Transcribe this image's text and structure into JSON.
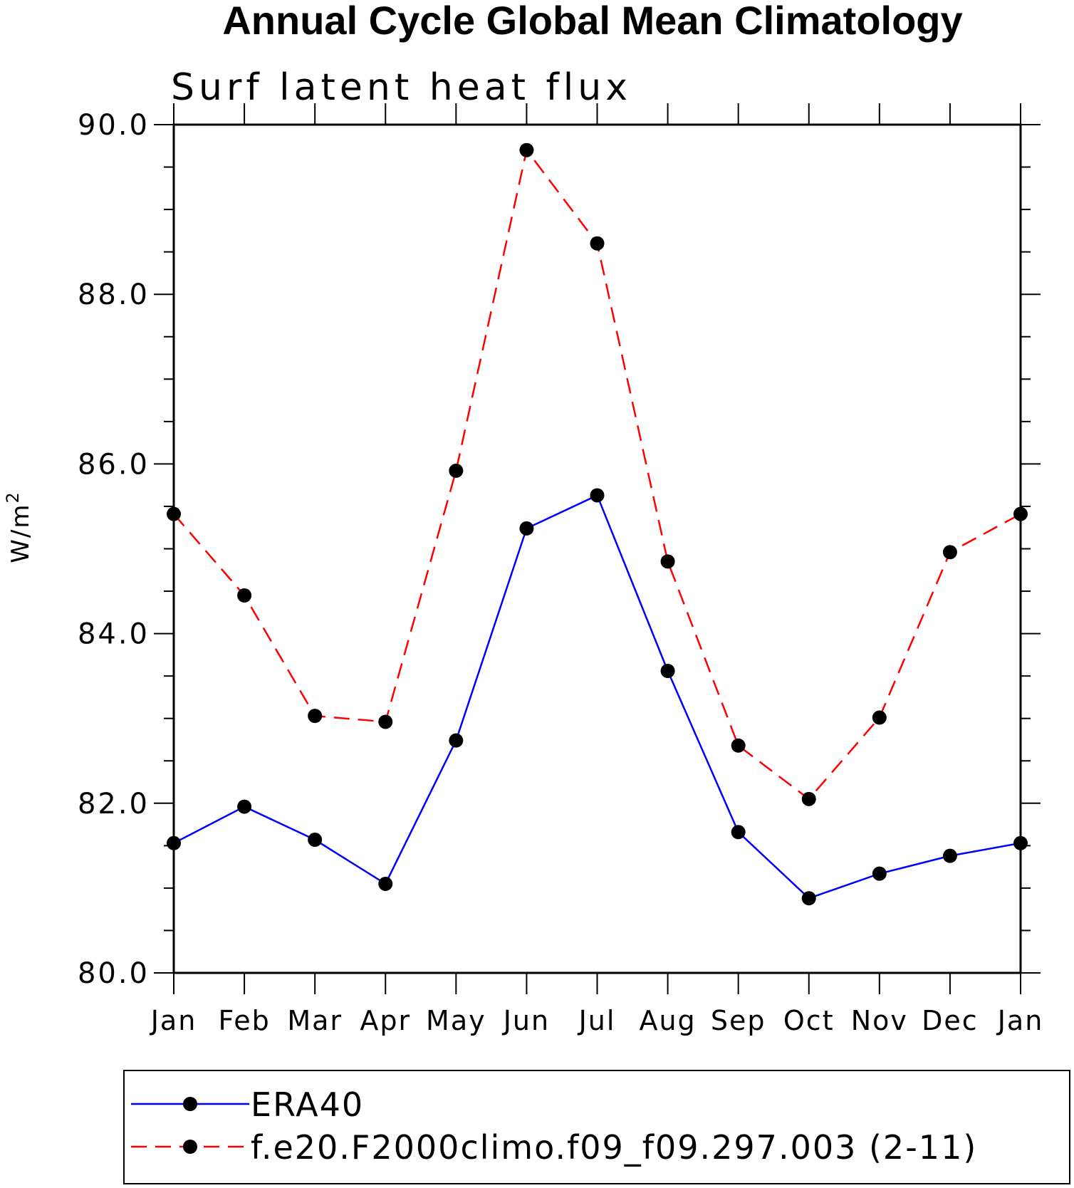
{
  "chart_data": {
    "type": "line",
    "title": "Annual Cycle Global Mean Climatology",
    "subtitle": "Surf latent heat flux",
    "ylabel": "W/m",
    "ylabel_superscript": "2",
    "xlabel": "",
    "ylim": [
      80.0,
      90.0
    ],
    "yticks": [
      "80.0",
      "82.0",
      "84.0",
      "86.0",
      "88.0",
      "90.0"
    ],
    "ytick_values": [
      80,
      82,
      84,
      86,
      88,
      90
    ],
    "categories": [
      "Jan",
      "Feb",
      "Mar",
      "Apr",
      "May",
      "Jun",
      "Jul",
      "Aug",
      "Sep",
      "Oct",
      "Nov",
      "Dec",
      "Jan"
    ],
    "series": [
      {
        "name": "ERA40",
        "color": "#0000ff",
        "dashed": false,
        "values": [
          81.53,
          81.96,
          81.57,
          81.05,
          82.74,
          85.24,
          85.63,
          83.56,
          81.66,
          80.88,
          81.17,
          81.38,
          81.53
        ]
      },
      {
        "name": "f.e20.F2000climo.f09_f09.297.003 (2-11)",
        "color": "#ff0000",
        "dashed": true,
        "values": [
          85.41,
          84.45,
          83.03,
          82.96,
          85.92,
          89.7,
          88.6,
          84.85,
          82.68,
          82.05,
          83.01,
          84.96,
          85.41
        ]
      }
    ]
  }
}
